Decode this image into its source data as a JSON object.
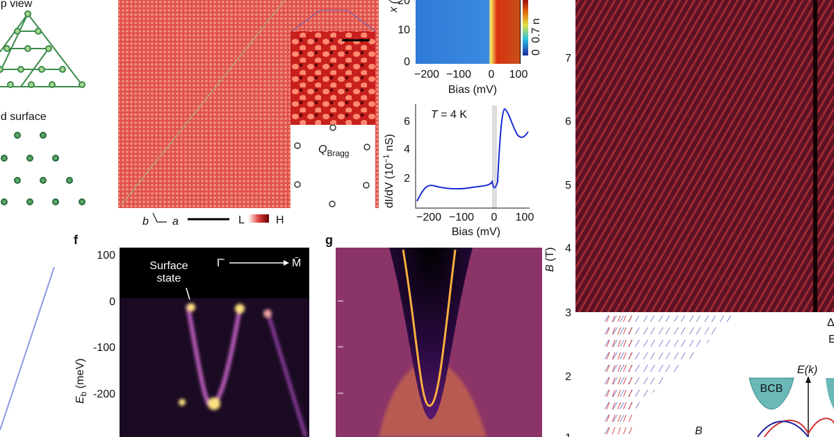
{
  "panel_a": {
    "top_view": "op view",
    "surface": "ed surface"
  },
  "panel_b": {
    "axis_b": "b",
    "axis_a": "a",
    "low": "L",
    "high": "H",
    "q": "Q",
    "q_sub": "Bragg"
  },
  "panel_c": {
    "y_label": "x (",
    "yticks": [
      "20",
      "10",
      "0"
    ],
    "xticks": [
      "−200",
      "−100",
      "0",
      "100"
    ],
    "x_label": "Bias (mV)",
    "colorbar": [
      "0",
      "0.7 n"
    ]
  },
  "panel_d": {
    "t_var": "T",
    "t_rest": " = 4 K",
    "y_label_a": "dI/dV (10",
    "y_label_sup": "−1",
    "y_label_b": " nS)",
    "yticks": [
      "2",
      "4",
      "6"
    ],
    "xticks": [
      "−200",
      "−100",
      "0",
      "100"
    ],
    "x_label": "Bias (mV)"
  },
  "panel_f": {
    "letter": "f",
    "yticks": [
      "100",
      "0",
      "-100",
      "-200"
    ],
    "y_var": "E",
    "y_sub": "b",
    "y_unit": " (meV)",
    "annotation": "Surface\nstate",
    "gamma": "Γ̄",
    "m": "M̄"
  },
  "panel_g": {
    "letter": "g"
  },
  "panel_h": {
    "yticks": [
      "7",
      "6",
      "5",
      "4",
      "3",
      "2",
      "1"
    ],
    "y_var": "B",
    "y_unit": " (T)",
    "bcb": "BCB",
    "ek": "E(k)",
    "b_field": "B",
    "delta": "Δ",
    "e": "E"
  }
}
